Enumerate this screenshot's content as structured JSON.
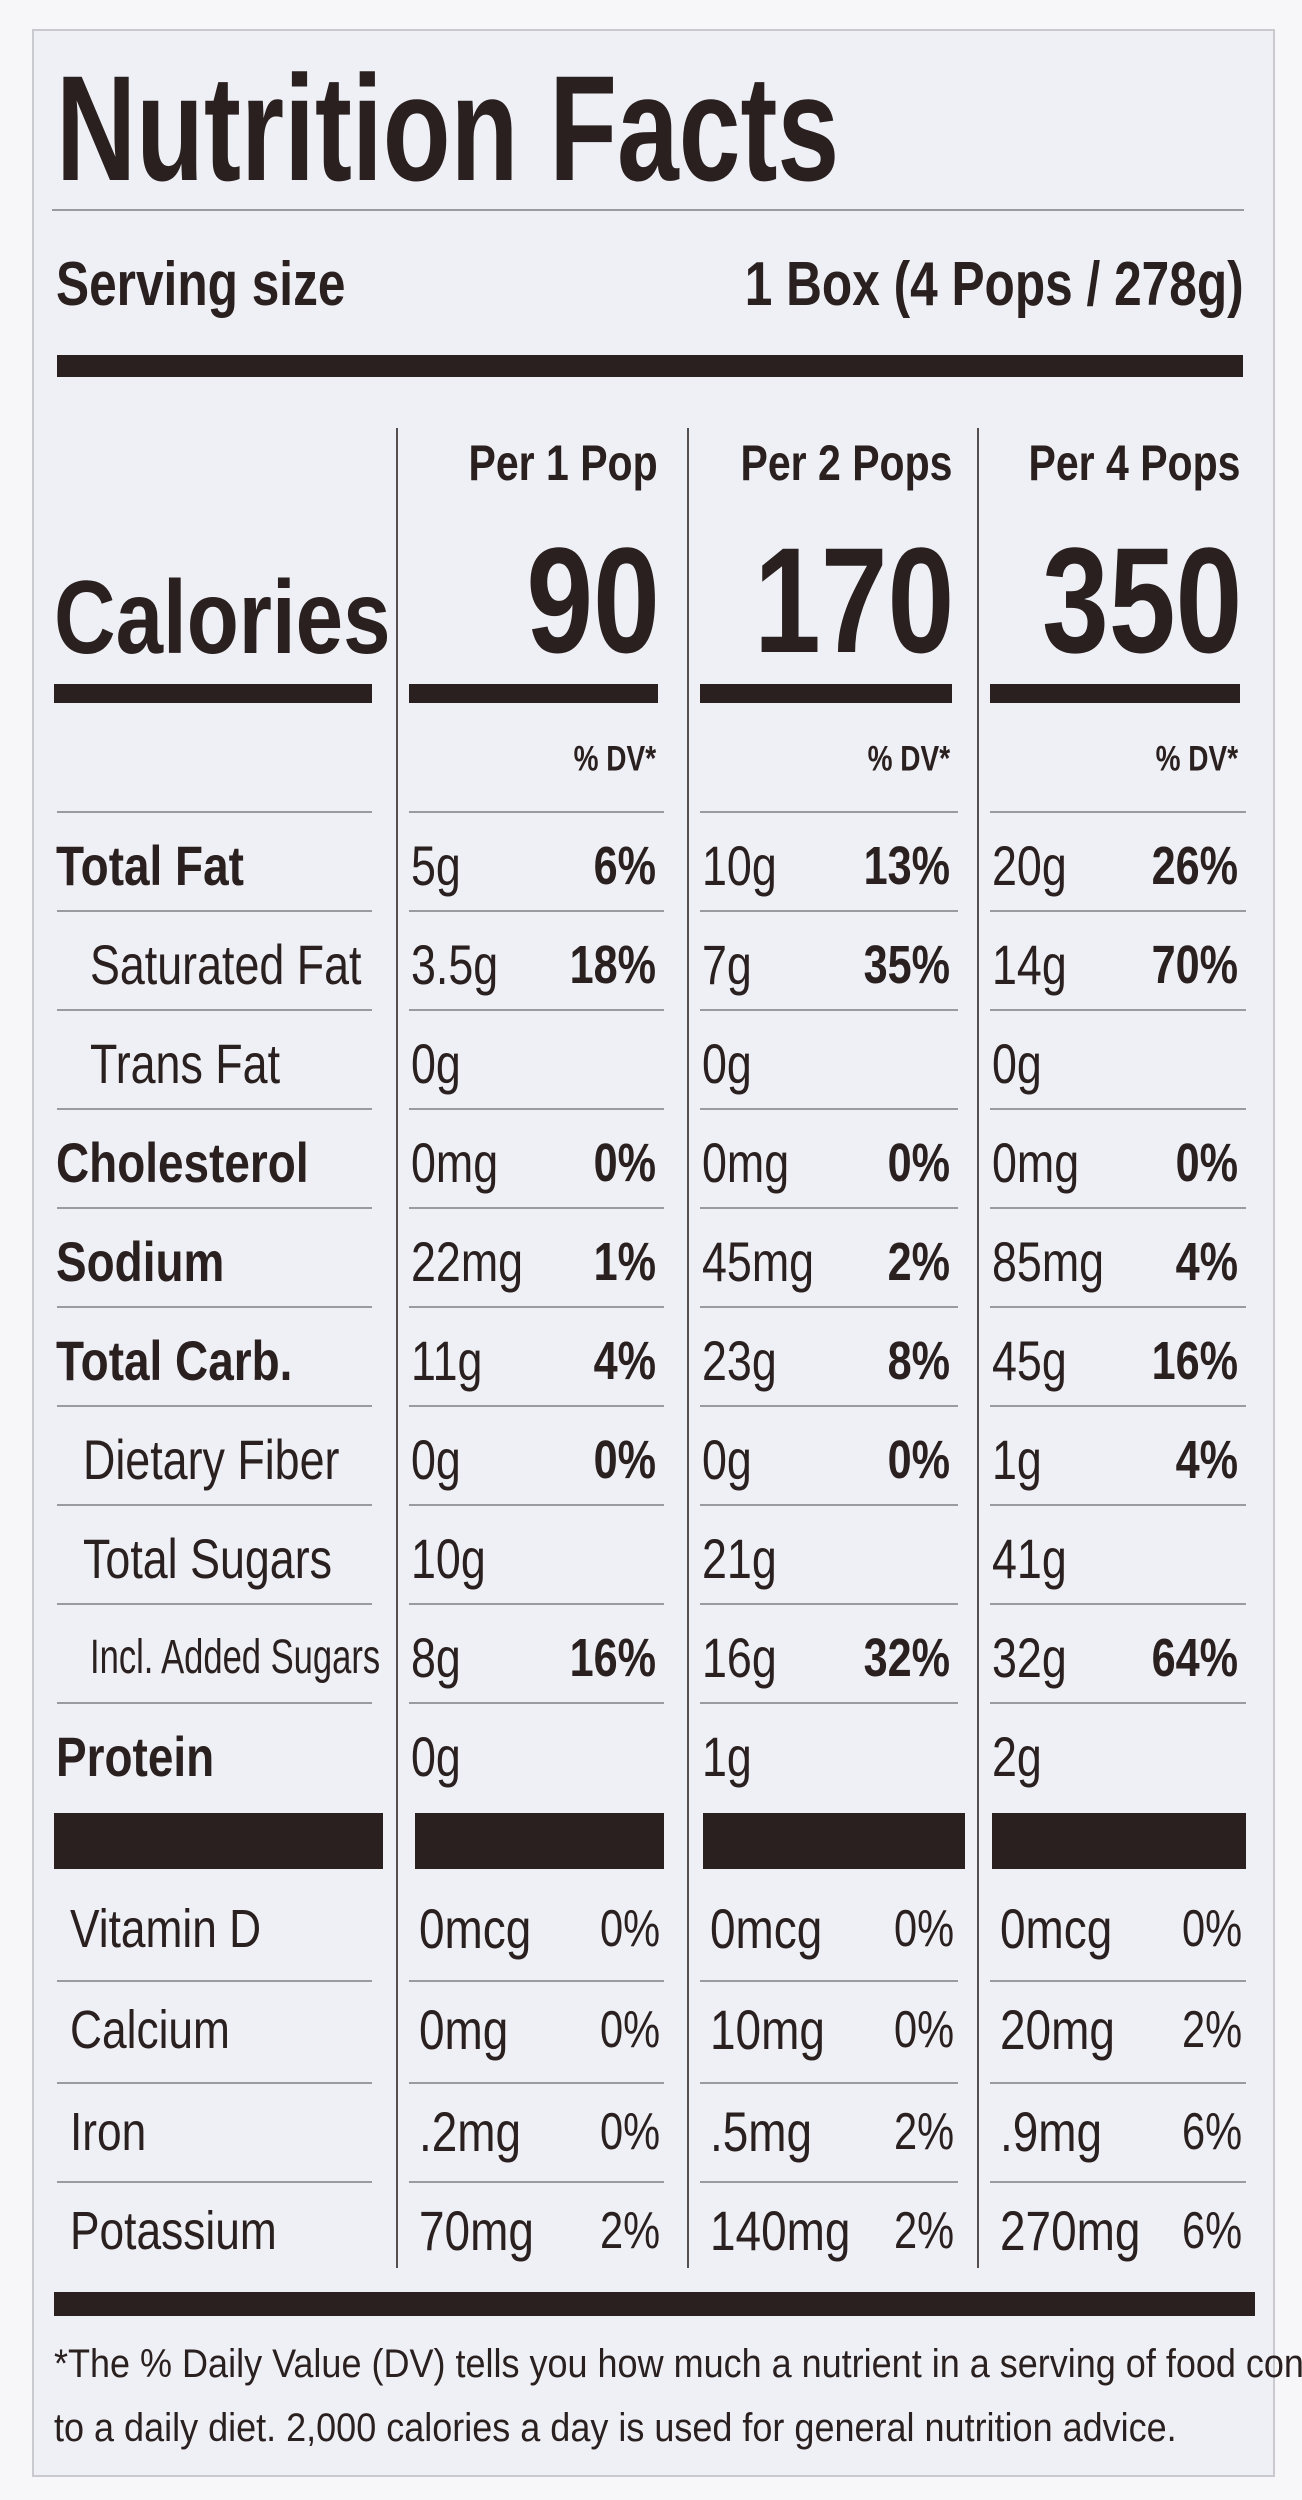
{
  "title": "Nutrition Facts",
  "serving": {
    "label": "Serving size",
    "value": "1 Box (4 Pops / 278g)"
  },
  "calories": {
    "label": "Calories",
    "columns": [
      {
        "header": "Per 1 Pop",
        "value": "90",
        "dv_label": "% DV*"
      },
      {
        "header": "Per 2 Pops",
        "value": "170",
        "dv_label": "% DV*"
      },
      {
        "header": "Per 4 Pops",
        "value": "350",
        "dv_label": "% DV*"
      }
    ]
  },
  "rows": [
    {
      "label": "Total Fat",
      "bold": true,
      "indent": 0,
      "cells": [
        [
          "5g",
          "6%"
        ],
        [
          "10g",
          "13%"
        ],
        [
          "20g",
          "26%"
        ]
      ]
    },
    {
      "label": "Saturated Fat",
      "bold": false,
      "indent": 2,
      "cells": [
        [
          "3.5g",
          "18%"
        ],
        [
          "7g",
          "35%"
        ],
        [
          "14g",
          "70%"
        ]
      ]
    },
    {
      "label": "Trans Fat",
      "bold": false,
      "indent": 2,
      "cells": [
        [
          "0g"
        ],
        [
          "0g"
        ],
        [
          "0g"
        ]
      ]
    },
    {
      "label": "Cholesterol",
      "bold": true,
      "indent": 0,
      "cells": [
        [
          "0mg",
          "0%"
        ],
        [
          "0mg",
          "0%"
        ],
        [
          "0mg",
          "0%"
        ]
      ]
    },
    {
      "label": "Sodium",
      "bold": true,
      "indent": 0,
      "cells": [
        [
          "22mg",
          "1%"
        ],
        [
          "45mg",
          "2%"
        ],
        [
          "85mg",
          "4%"
        ]
      ]
    },
    {
      "label": "Total Carb.",
      "bold": true,
      "indent": 0,
      "cells": [
        [
          "11g",
          "4%"
        ],
        [
          "23g",
          "8%"
        ],
        [
          "45g",
          "16%"
        ]
      ]
    },
    {
      "label": "Dietary Fiber",
      "bold": false,
      "indent": 1,
      "cells": [
        [
          "0g",
          "0%"
        ],
        [
          "0g",
          "0%"
        ],
        [
          "1g",
          "4%"
        ]
      ]
    },
    {
      "label": "Total Sugars",
      "bold": false,
      "indent": 1,
      "cells": [
        [
          "10g"
        ],
        [
          "21g"
        ],
        [
          "41g"
        ]
      ]
    },
    {
      "label": "Incl. Added Sugars",
      "bold": false,
      "indent": 2,
      "cells": [
        [
          "8g",
          "16%"
        ],
        [
          "16g",
          "32%"
        ],
        [
          "32g",
          "64%"
        ]
      ]
    },
    {
      "label": "Protein",
      "bold": true,
      "indent": 0,
      "cells": [
        [
          "0g"
        ],
        [
          "1g"
        ],
        [
          "2g"
        ]
      ]
    }
  ],
  "vitamins": [
    {
      "label": "Vitamin D",
      "cells": [
        [
          "0mcg",
          "0%"
        ],
        [
          "0mcg",
          "0%"
        ],
        [
          "0mcg",
          "0%"
        ]
      ]
    },
    {
      "label": "Calcium",
      "cells": [
        [
          "0mg",
          "0%"
        ],
        [
          "10mg",
          "0%"
        ],
        [
          "20mg",
          "2%"
        ]
      ]
    },
    {
      "label": "Iron",
      "cells": [
        [
          ".2mg",
          "0%"
        ],
        [
          ".5mg",
          "2%"
        ],
        [
          ".9mg",
          "6%"
        ]
      ]
    },
    {
      "label": "Potassium",
      "cells": [
        [
          "70mg",
          "2%"
        ],
        [
          "140mg",
          "2%"
        ],
        [
          "270mg",
          "6%"
        ]
      ]
    }
  ],
  "footnote": [
    "*The % Daily Value (DV) tells you how much a nutrient in a serving of food contributes",
    "to a daily diet. 2,000 calories a day is used for general nutrition advice."
  ]
}
